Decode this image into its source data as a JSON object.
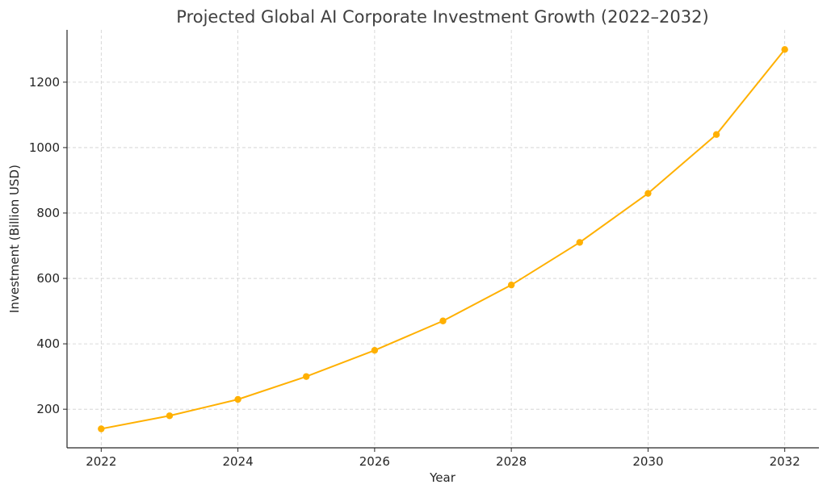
{
  "chart_data": {
    "type": "line",
    "title": "Projected Global AI Corporate Investment Growth (2022–2032)",
    "xlabel": "Year",
    "ylabel": "Investment (Billion USD)",
    "x": [
      2022,
      2023,
      2024,
      2025,
      2026,
      2027,
      2028,
      2029,
      2030,
      2031,
      2032
    ],
    "series": [
      {
        "values": [
          140,
          180,
          230,
          300,
          380,
          470,
          580,
          710,
          860,
          1040,
          1300
        ],
        "color": "#FFB000"
      }
    ],
    "xticks": [
      2022,
      2024,
      2026,
      2028,
      2030,
      2032
    ],
    "yticks": [
      200,
      400,
      600,
      800,
      1000,
      1200
    ],
    "xlim": [
      2021.5,
      2032.5
    ],
    "ylim": [
      82,
      1360
    ],
    "grid": true,
    "legend": "none"
  }
}
